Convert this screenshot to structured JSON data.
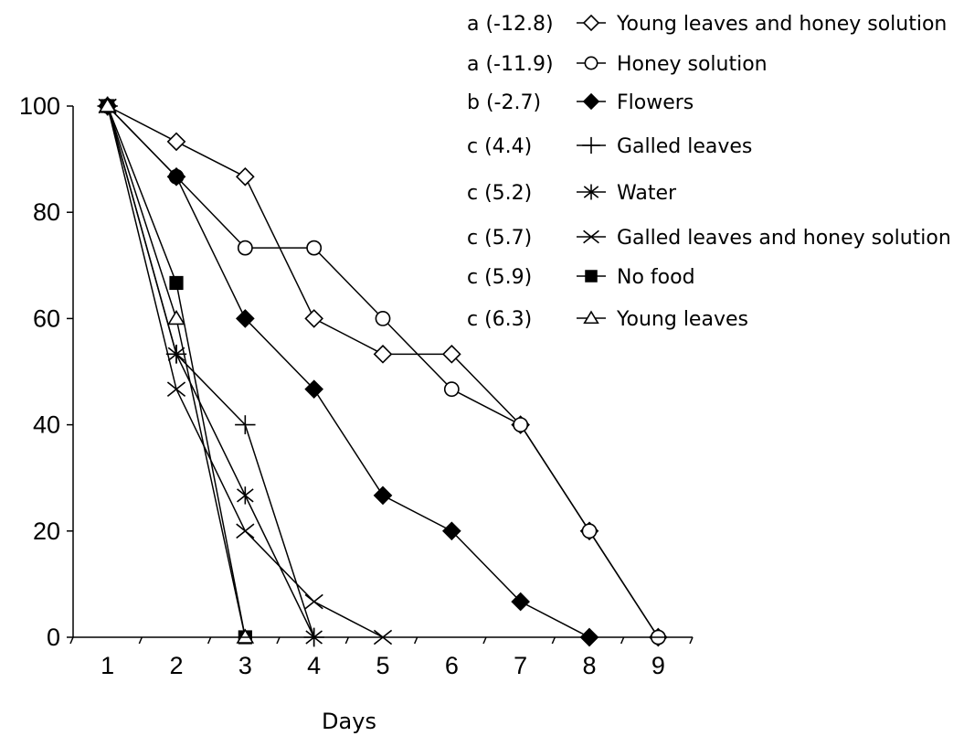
{
  "chart_data": {
    "type": "line",
    "title": "",
    "xlabel": "Days",
    "ylabel": "",
    "xlim": [
      0.5,
      9.5
    ],
    "ylim": [
      0,
      100
    ],
    "x_ticks": [
      "1",
      "2",
      "3",
      "4",
      "5",
      "6",
      "7",
      "8",
      "9"
    ],
    "y_ticks": [
      "0",
      "20",
      "40",
      "60",
      "80",
      "100"
    ],
    "grid": false,
    "legend_position": "top-right",
    "series": [
      {
        "name": "Young leaves and honey solution",
        "group": "a (-12.8)",
        "marker": "diamond-open",
        "points": [
          [
            1,
            100
          ],
          [
            2,
            93.3
          ],
          [
            3,
            86.7
          ],
          [
            4,
            60
          ],
          [
            5,
            53.3
          ],
          [
            6,
            53.3
          ],
          [
            7,
            40
          ],
          [
            8,
            20
          ],
          [
            9,
            0
          ]
        ]
      },
      {
        "name": "Honey solution",
        "group": "a (-11.9)",
        "marker": "circle-open",
        "points": [
          [
            1,
            100
          ],
          [
            2,
            86.7
          ],
          [
            3,
            73.3
          ],
          [
            4,
            73.3
          ],
          [
            5,
            60
          ],
          [
            6,
            46.7
          ],
          [
            7,
            40
          ],
          [
            8,
            20
          ],
          [
            9,
            0
          ]
        ]
      },
      {
        "name": "Flowers",
        "group": "b (-2.7)",
        "marker": "diamond-filled",
        "points": [
          [
            1,
            100
          ],
          [
            2,
            86.7
          ],
          [
            3,
            60
          ],
          [
            4,
            46.7
          ],
          [
            5,
            26.7
          ],
          [
            6,
            20
          ],
          [
            7,
            6.7
          ],
          [
            8,
            0
          ]
        ]
      },
      {
        "name": "Galled leaves",
        "group": "c (4.4)",
        "marker": "plus",
        "points": [
          [
            1,
            100
          ],
          [
            2,
            53.3
          ],
          [
            3,
            40
          ],
          [
            4,
            0
          ]
        ]
      },
      {
        "name": "Water",
        "group": "c (5.2)",
        "marker": "asterisk",
        "points": [
          [
            1,
            100
          ],
          [
            2,
            53.3
          ],
          [
            3,
            26.7
          ],
          [
            4,
            0
          ]
        ]
      },
      {
        "name": "Galled leaves and  honey solution",
        "group": "c (5.7)",
        "marker": "x",
        "points": [
          [
            1,
            100
          ],
          [
            2,
            46.7
          ],
          [
            3,
            20
          ],
          [
            4,
            6.7
          ],
          [
            5,
            0
          ]
        ]
      },
      {
        "name": "No food",
        "group": "c (5.9)",
        "marker": "square-filled",
        "points": [
          [
            1,
            100
          ],
          [
            2,
            66.7
          ],
          [
            3,
            0
          ]
        ]
      },
      {
        "name": "Young leaves",
        "group": "c (6.3)",
        "marker": "triangle-open",
        "points": [
          [
            1,
            100
          ],
          [
            2,
            60
          ],
          [
            3,
            0
          ]
        ]
      }
    ]
  }
}
